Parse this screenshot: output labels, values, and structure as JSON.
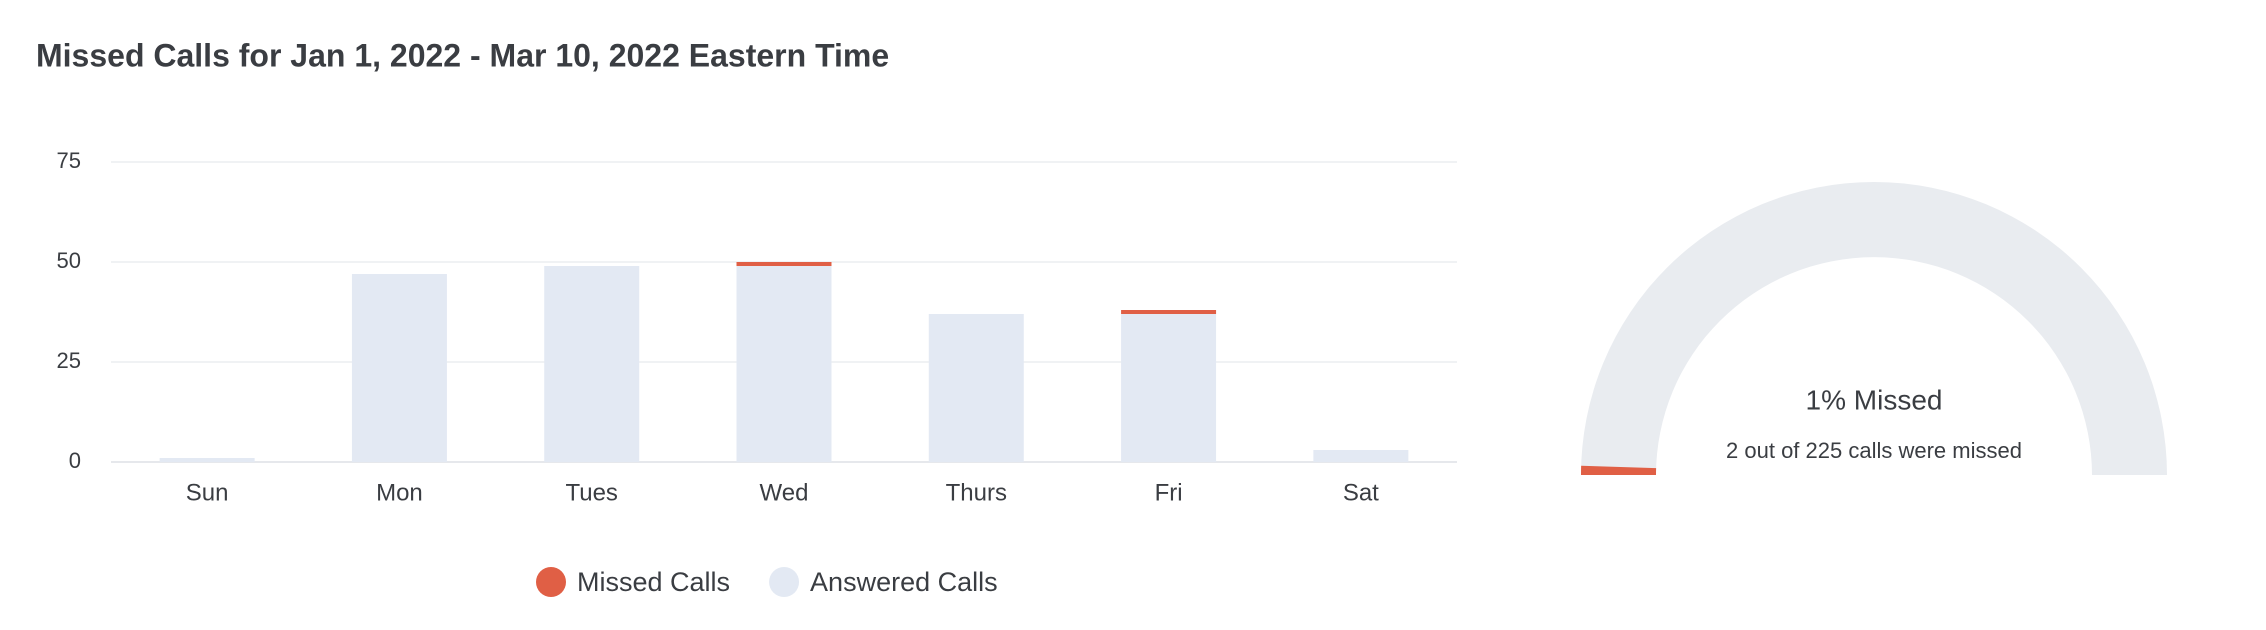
{
  "chart_data": [
    {
      "type": "bar",
      "stacked": true,
      "title": "Missed Calls for Jan 1, 2022 - Mar 10, 2022 Eastern Time",
      "categories": [
        "Sun",
        "Mon",
        "Tues",
        "Wed",
        "Thurs",
        "Fri",
        "Sat"
      ],
      "series": [
        {
          "name": "Missed Calls",
          "color": "#e05f45",
          "values": [
            0,
            0,
            0,
            1,
            0,
            1,
            0
          ]
        },
        {
          "name": "Answered Calls",
          "color": "#e3e9f3",
          "values": [
            1,
            47,
            49,
            49,
            37,
            37,
            3
          ]
        }
      ],
      "ylim": [
        0,
        75
      ],
      "yticks": [
        0,
        25,
        50,
        75
      ],
      "grid": true,
      "legend": "bottom"
    },
    {
      "type": "gauge",
      "value": 1,
      "range": [
        0,
        100
      ],
      "value_label": "1% Missed",
      "subtitle": "2 out of 225 calls were missed",
      "color": "#e05f45",
      "track_color": "#e9ecf0"
    }
  ]
}
